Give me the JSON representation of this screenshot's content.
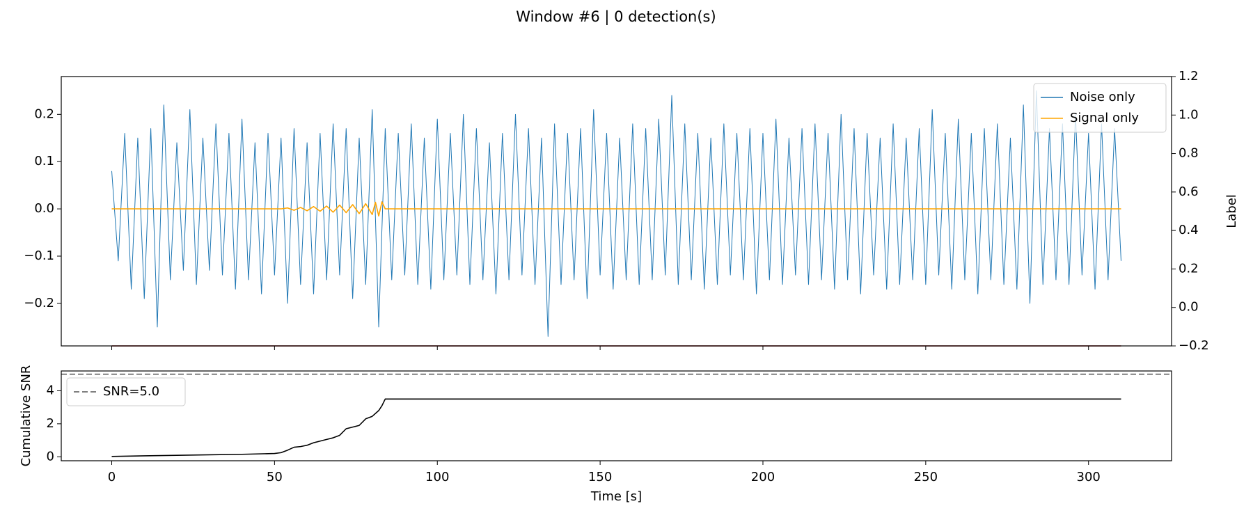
{
  "chart_data": [
    {
      "type": "line",
      "title": "Window #6 | 0 detection(s)",
      "y2label": "Label",
      "legend": "upper right",
      "xlim": [
        -15.5,
        325.5
      ],
      "xticks": [
        0,
        50,
        100,
        150,
        200,
        250,
        300
      ],
      "ylim": [
        -0.29,
        0.28
      ],
      "yticks": [
        {
          "value": -0.2,
          "label": "−0.2"
        },
        {
          "value": -0.1,
          "label": "−0.1"
        },
        {
          "value": 0,
          "label": "0.0"
        },
        0.1,
        0.2
      ],
      "y2lim": [
        -0.2,
        1.2
      ],
      "y2ticks": [
        {
          "value": -0.2,
          "label": "−0.2"
        },
        {
          "value": 0,
          "label": "0.0"
        },
        0.2,
        0.4,
        0.6,
        0.8,
        {
          "value": 1,
          "label": "1.0"
        },
        1.2
      ],
      "series": [
        {
          "name": "Noise only",
          "color": "#1f77b4",
          "x": [
            0,
            2,
            4,
            6,
            8,
            10,
            12,
            14,
            16,
            18,
            20,
            22,
            24,
            26,
            28,
            30,
            32,
            34,
            36,
            38,
            40,
            42,
            44,
            46,
            48,
            50,
            52,
            54,
            56,
            58,
            60,
            62,
            64,
            66,
            68,
            70,
            72,
            74,
            76,
            78,
            80,
            82,
            84,
            86,
            88,
            90,
            92,
            94,
            96,
            98,
            100,
            102,
            104,
            106,
            108,
            110,
            112,
            114,
            116,
            118,
            120,
            122,
            124,
            126,
            128,
            130,
            132,
            134,
            136,
            138,
            140,
            142,
            144,
            146,
            148,
            150,
            152,
            154,
            156,
            158,
            160,
            162,
            164,
            166,
            168,
            170,
            172,
            174,
            176,
            178,
            180,
            182,
            184,
            186,
            188,
            190,
            192,
            194,
            196,
            198,
            200,
            202,
            204,
            206,
            208,
            210,
            212,
            214,
            216,
            218,
            220,
            222,
            224,
            226,
            228,
            230,
            232,
            234,
            236,
            238,
            240,
            242,
            244,
            246,
            248,
            250,
            252,
            254,
            256,
            258,
            260,
            262,
            264,
            266,
            268,
            270,
            272,
            274,
            276,
            278,
            280,
            282,
            284,
            286,
            288,
            290,
            292,
            294,
            296,
            298,
            300,
            302,
            304,
            306,
            308,
            310
          ],
          "values": [
            0.08,
            -0.11,
            0.16,
            -0.17,
            0.15,
            -0.19,
            0.17,
            -0.25,
            0.22,
            -0.15,
            0.14,
            -0.13,
            0.21,
            -0.16,
            0.15,
            -0.13,
            0.18,
            -0.14,
            0.16,
            -0.17,
            0.19,
            -0.15,
            0.14,
            -0.18,
            0.16,
            -0.14,
            0.15,
            -0.2,
            0.17,
            -0.16,
            0.14,
            -0.18,
            0.16,
            -0.15,
            0.18,
            -0.14,
            0.17,
            -0.19,
            0.15,
            -0.16,
            0.21,
            -0.25,
            0.17,
            -0.15,
            0.16,
            -0.14,
            0.18,
            -0.16,
            0.15,
            -0.17,
            0.19,
            -0.15,
            0.16,
            -0.14,
            0.2,
            -0.16,
            0.17,
            -0.15,
            0.14,
            -0.18,
            0.16,
            -0.15,
            0.2,
            -0.14,
            0.17,
            -0.16,
            0.15,
            -0.27,
            0.18,
            -0.16,
            0.16,
            -0.15,
            0.17,
            -0.19,
            0.21,
            -0.14,
            0.16,
            -0.17,
            0.15,
            -0.15,
            0.18,
            -0.16,
            0.17,
            -0.15,
            0.19,
            -0.14,
            0.24,
            -0.16,
            0.18,
            -0.15,
            0.16,
            -0.17,
            0.15,
            -0.16,
            0.18,
            -0.14,
            0.16,
            -0.15,
            0.17,
            -0.18,
            0.16,
            -0.15,
            0.19,
            -0.16,
            0.15,
            -0.14,
            0.17,
            -0.16,
            0.18,
            -0.15,
            0.16,
            -0.17,
            0.2,
            -0.15,
            0.17,
            -0.18,
            0.16,
            -0.14,
            0.15,
            -0.17,
            0.18,
            -0.16,
            0.15,
            -0.15,
            0.17,
            -0.16,
            0.21,
            -0.14,
            0.16,
            -0.17,
            0.19,
            -0.15,
            0.16,
            -0.18,
            0.17,
            -0.15,
            0.18,
            -0.16,
            0.15,
            -0.17,
            0.22,
            -0.2,
            0.25,
            -0.16,
            0.17,
            -0.15,
            0.18,
            -0.16,
            0.2,
            -0.14,
            0.16,
            -0.17,
            0.18,
            -0.15,
            0.17,
            -0.11
          ]
        },
        {
          "name": "Signal only",
          "color": "#ffa500",
          "x": [
            0,
            52,
            54,
            56,
            58,
            60,
            62,
            64,
            66,
            68,
            70,
            72,
            74,
            76,
            78,
            80,
            81,
            82,
            83,
            84,
            310
          ],
          "values": [
            0,
            0,
            0.002,
            -0.003,
            0.003,
            -0.004,
            0.005,
            -0.005,
            0.006,
            -0.007,
            0.008,
            -0.008,
            0.009,
            -0.01,
            0.011,
            -0.012,
            0.014,
            -0.015,
            0.015,
            0,
            0
          ]
        },
        {
          "color": "#8b0000",
          "axis": "y2",
          "x": [
            0,
            310
          ],
          "values": [
            -0.2,
            -0.2
          ]
        }
      ]
    },
    {
      "type": "line",
      "xlabel": "Time [s]",
      "ylabel": "Cumulative SNR",
      "legend": "upper left",
      "xlim": [
        -15.5,
        325.5
      ],
      "xticks": [
        0,
        50,
        100,
        150,
        200,
        250,
        300
      ],
      "ylim": [
        -0.24,
        5.2
      ],
      "yticks": [
        0,
        2,
        4
      ],
      "hlines": [
        {
          "name": "SNR=5.0",
          "y": 5.0,
          "color": "#808080"
        }
      ],
      "series": [
        {
          "color": "#000000",
          "x": [
            0,
            10,
            20,
            30,
            40,
            50,
            52,
            54,
            56,
            58,
            60,
            62,
            64,
            66,
            68,
            70,
            72,
            74,
            76,
            78,
            80,
            82,
            83,
            84,
            310
          ],
          "values": [
            0.02,
            0.06,
            0.09,
            0.12,
            0.15,
            0.2,
            0.25,
            0.4,
            0.58,
            0.62,
            0.7,
            0.85,
            0.95,
            1.05,
            1.15,
            1.3,
            1.7,
            1.8,
            1.9,
            2.3,
            2.45,
            2.8,
            3.1,
            3.5,
            3.5
          ]
        }
      ]
    }
  ]
}
